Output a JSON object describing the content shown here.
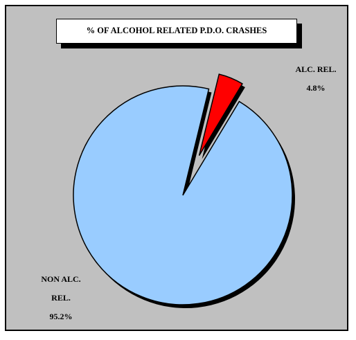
{
  "chart_data": {
    "type": "pie",
    "title": "% OF ALCOHOL RELATED P.D.O. CRASHES",
    "slices": [
      {
        "label_lines": [
          "ALC. REL.",
          "4.8%"
        ],
        "value": 4.8,
        "color": "#ff0000",
        "exploded": true
      },
      {
        "label_lines": [
          "NON ALC.",
          "REL.",
          "95.2%"
        ],
        "value": 95.2,
        "color": "#99ccff",
        "exploded": false
      }
    ],
    "shadow_color": "#000000",
    "background_color": "#c0c0c0"
  }
}
